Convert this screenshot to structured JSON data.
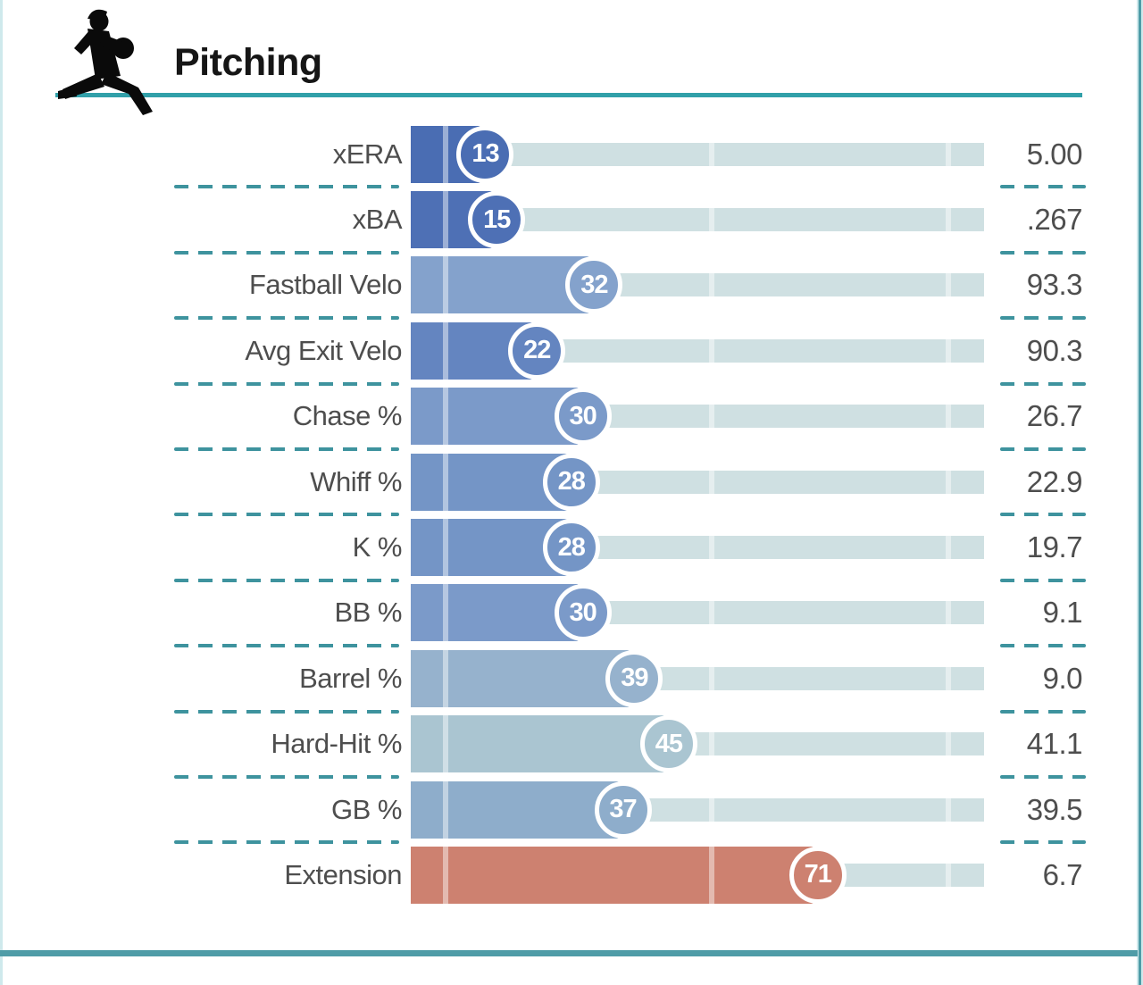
{
  "header": {
    "title": "Pitching"
  },
  "colors": {
    "accent_teal": "#31a0a9",
    "separator_teal": "#3e939e",
    "border_teal": "#4f9ca7",
    "track": "#cfe0e2",
    "text_gray": "#4e4e4e"
  },
  "rows": [
    {
      "label": "xERA",
      "percentile": 13,
      "value": "5.00",
      "color": "#4a6db3"
    },
    {
      "label": "xBA",
      "percentile": 15,
      "value": ".267",
      "color": "#4e70b5"
    },
    {
      "label": "Fastball Velo",
      "percentile": 32,
      "value": "93.3",
      "color": "#84a2cc"
    },
    {
      "label": "Avg Exit Velo",
      "percentile": 22,
      "value": "90.3",
      "color": "#6485c0"
    },
    {
      "label": "Chase %",
      "percentile": 30,
      "value": "26.7",
      "color": "#7b9ac9"
    },
    {
      "label": "Whiff %",
      "percentile": 28,
      "value": "22.9",
      "color": "#7495c6"
    },
    {
      "label": "K %",
      "percentile": 28,
      "value": "19.7",
      "color": "#7495c6"
    },
    {
      "label": "BB %",
      "percentile": 30,
      "value": "9.1",
      "color": "#7b9ac9"
    },
    {
      "label": "Barrel %",
      "percentile": 39,
      "value": "9.0",
      "color": "#96b2cd"
    },
    {
      "label": "Hard-Hit %",
      "percentile": 45,
      "value": "41.1",
      "color": "#aac5d1"
    },
    {
      "label": "GB %",
      "percentile": 37,
      "value": "39.5",
      "color": "#8eadcb"
    },
    {
      "label": "Extension",
      "percentile": 71,
      "value": "6.7",
      "color": "#cd8170"
    }
  ],
  "chart_data": {
    "type": "bar",
    "orientation": "horizontal",
    "title": "Pitching",
    "categories": [
      "xERA",
      "xBA",
      "Fastball Velo",
      "Avg Exit Velo",
      "Chase %",
      "Whiff %",
      "K %",
      "BB %",
      "Barrel %",
      "Hard-Hit %",
      "GB %",
      "Extension"
    ],
    "series": [
      {
        "name": "Percentile rank",
        "values": [
          13,
          15,
          32,
          22,
          30,
          28,
          28,
          30,
          39,
          45,
          37,
          71
        ]
      },
      {
        "name": "Stat value",
        "values": [
          "5.00",
          ".267",
          "93.3",
          "90.3",
          "26.7",
          "22.9",
          "19.7",
          "9.1",
          "9.0",
          "41.1",
          "39.5",
          "6.7"
        ]
      }
    ],
    "xlim": [
      0,
      100
    ],
    "gridlines_pct": [
      6,
      52.5,
      93.8
    ],
    "legend": "none",
    "color_scale": "blue (low percentile) through gray to red (high percentile)"
  }
}
